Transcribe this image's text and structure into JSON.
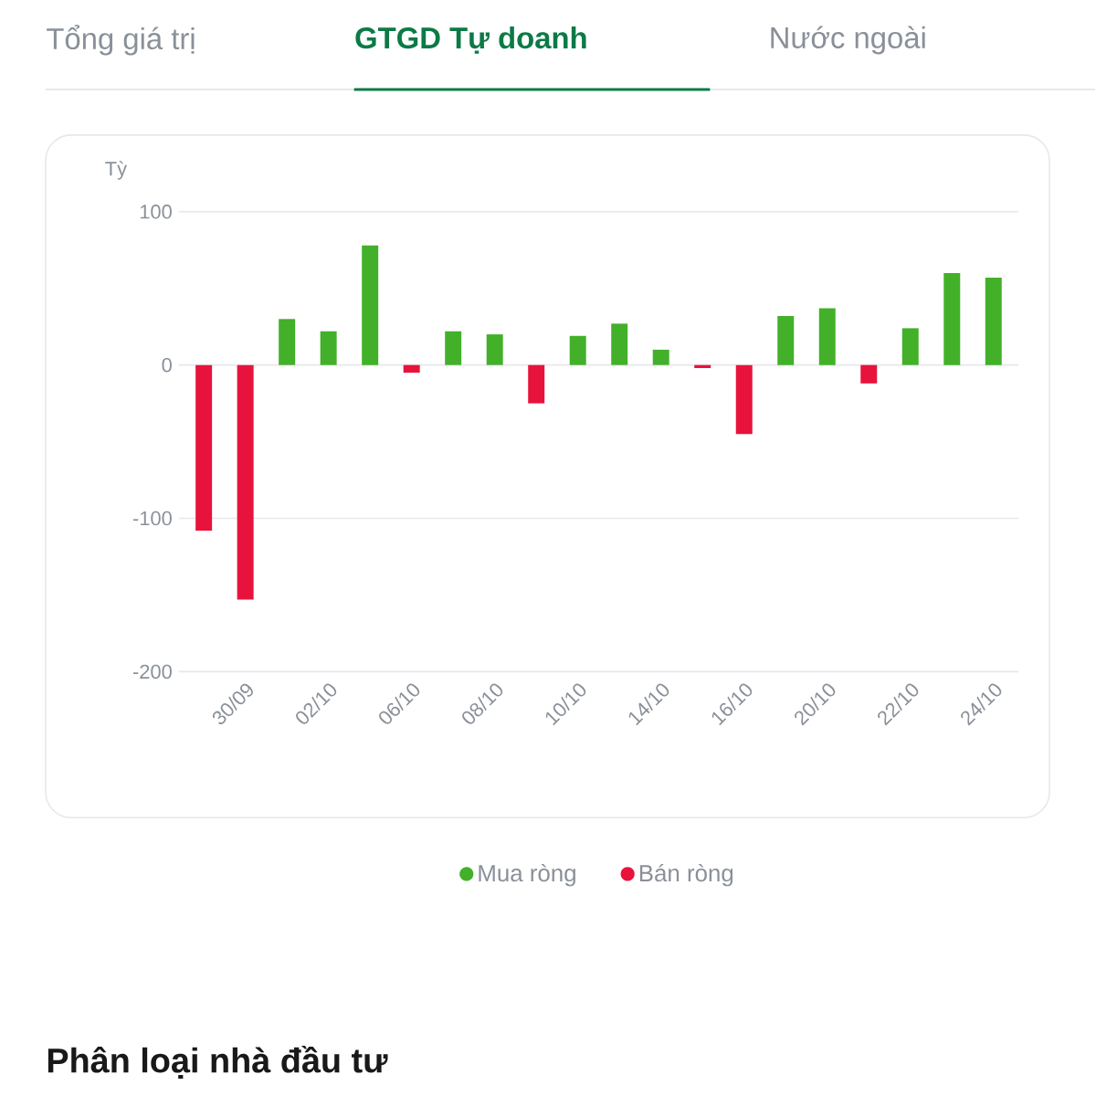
{
  "chart_data": {
    "type": "bar",
    "title": "GTGD Tự doanh",
    "ylabel": "Tỳ",
    "annotations": [
      "Tổng giá trị",
      "Nước ngoài",
      "Phân loại nhà đầu tư"
    ],
    "categories": [
      null,
      "30/09",
      null,
      "02/10",
      null,
      "06/10",
      null,
      "08/10",
      null,
      "10/10",
      null,
      "14/10",
      null,
      "16/10",
      null,
      "20/10",
      null,
      "22/10",
      null,
      "24/10"
    ],
    "series": [
      {
        "name": "Mua ròng",
        "color": "#43b02a",
        "values": [
          null,
          null,
          30,
          22,
          78,
          null,
          22,
          20,
          null,
          19,
          27,
          10,
          null,
          null,
          32,
          37,
          null,
          24,
          60,
          57
        ]
      },
      {
        "name": "Bán ròng",
        "color": "#e8133c",
        "values": [
          -108,
          -153,
          null,
          null,
          null,
          -5,
          null,
          null,
          -25,
          null,
          null,
          null,
          -2,
          -45,
          null,
          null,
          -12,
          null,
          null,
          null
        ]
      }
    ],
    "ylim": [
      -200,
      100
    ],
    "yticks": [
      -200,
      -100,
      0,
      100
    ],
    "grid": "y",
    "legend": "bottom"
  }
}
